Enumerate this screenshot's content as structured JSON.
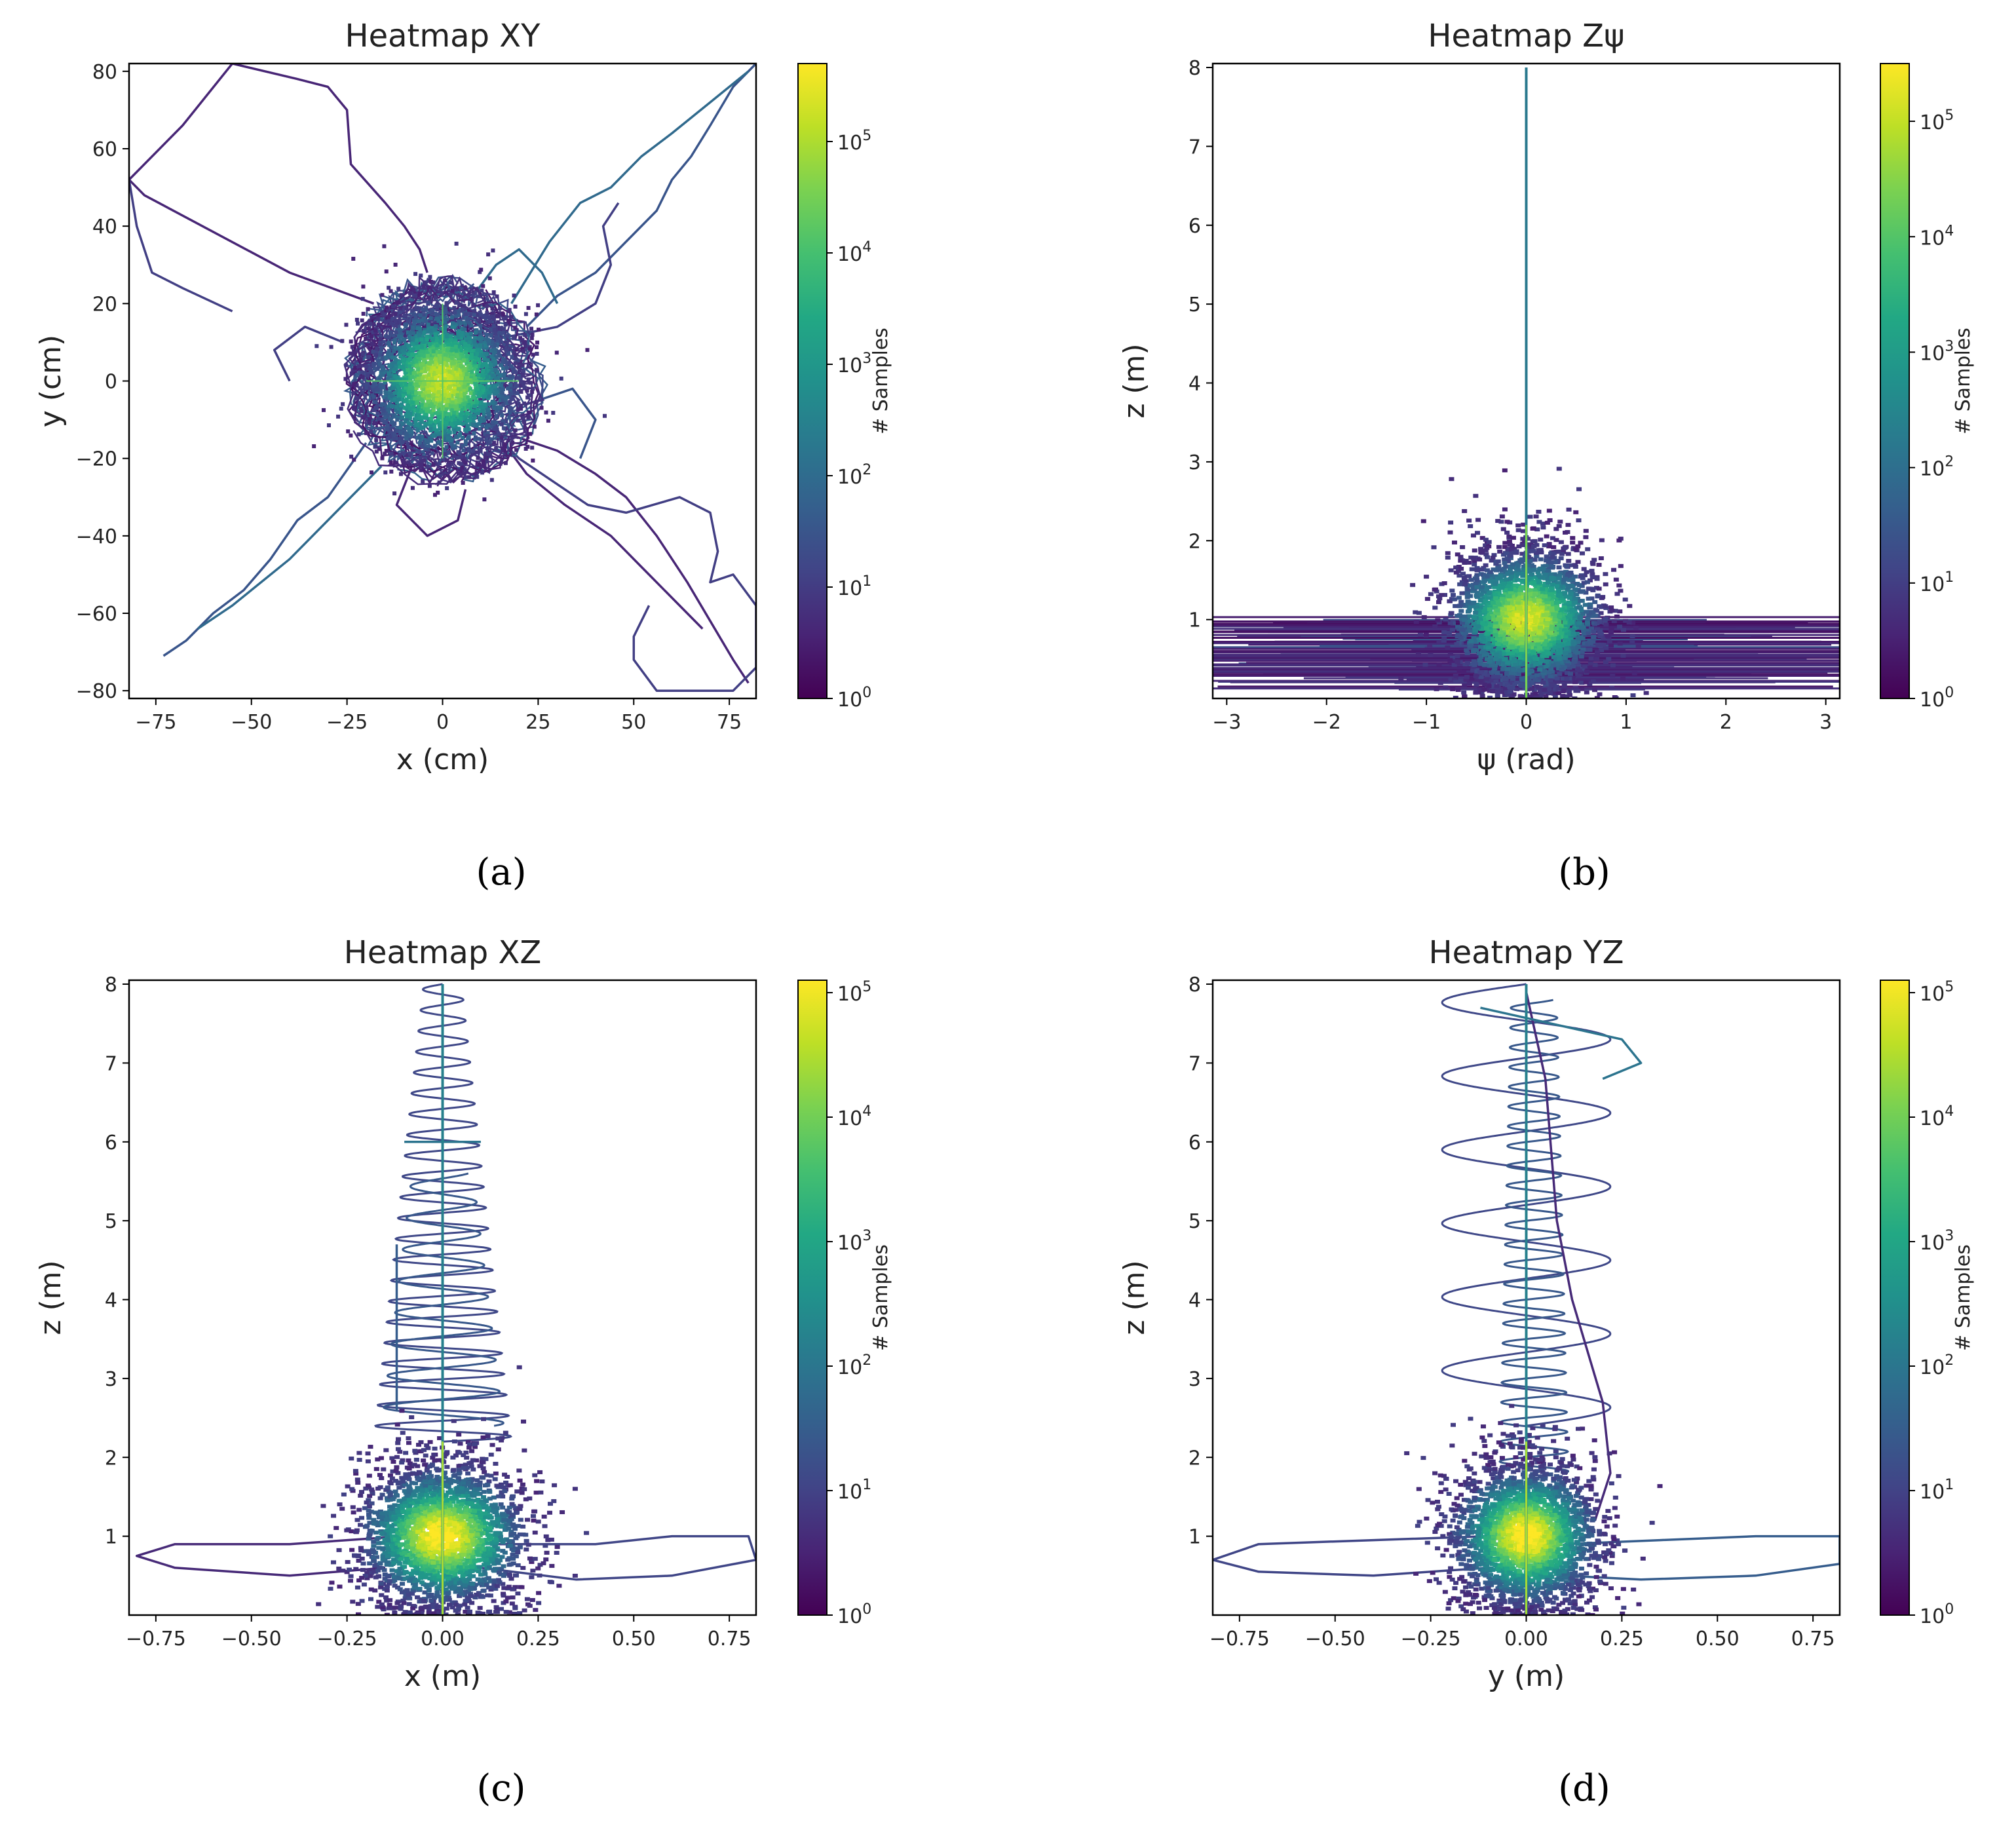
{
  "chart_data": [
    {
      "type": "heatmap",
      "panel": "(a)",
      "title": "Heatmap XY",
      "xlabel": "x (cm)",
      "ylabel": "y (cm)",
      "xlim": [
        -82,
        82
      ],
      "ylim": [
        -82,
        82
      ],
      "xticks": [
        -75,
        -50,
        -25,
        0,
        25,
        50,
        75
      ],
      "xtick_labels": [
        "−75",
        "−50",
        "−25",
        "0",
        "25",
        "50",
        "75"
      ],
      "yticks": [
        -80,
        -60,
        -40,
        -20,
        0,
        20,
        40,
        60,
        80
      ],
      "ytick_labels": [
        "−80",
        "−60",
        "−40",
        "−20",
        "0",
        "20",
        "40",
        "60",
        "80"
      ],
      "colorbar": {
        "label": "# Samples",
        "scale": "log",
        "ticks": [
          "10",
          "10",
          "10",
          "10",
          "10",
          "10"
        ],
        "exponents": [
          "0",
          "1",
          "2",
          "3",
          "4",
          "5"
        ],
        "max_exp": 5.7
      },
      "core": {
        "center": [
          0,
          0
        ],
        "radius": 22,
        "peak_exp": 5
      },
      "trajectories": [
        [
          [
            -18,
            20
          ],
          [
            -40,
            28
          ],
          [
            -78,
            48
          ],
          [
            -82,
            52
          ],
          [
            -68,
            66
          ],
          [
            -55,
            82
          ],
          [
            -38,
            78
          ],
          [
            -30,
            76
          ],
          [
            -25,
            70
          ],
          [
            -24,
            56
          ],
          [
            -15,
            46
          ],
          [
            -10,
            40
          ],
          [
            -6,
            34
          ],
          [
            -4,
            28
          ]
        ],
        [
          [
            -55,
            18
          ],
          [
            -68,
            24
          ],
          [
            -76,
            28
          ],
          [
            -80,
            40
          ],
          [
            -82,
            52
          ]
        ],
        [
          [
            22,
            14
          ],
          [
            30,
            22
          ],
          [
            40,
            28
          ],
          [
            50,
            38
          ],
          [
            56,
            44
          ],
          [
            60,
            52
          ],
          [
            65,
            58
          ],
          [
            70,
            66
          ],
          [
            76,
            76
          ],
          [
            82,
            82
          ]
        ],
        [
          [
            18,
            20
          ],
          [
            28,
            36
          ],
          [
            36,
            46
          ],
          [
            44,
            50
          ],
          [
            52,
            58
          ],
          [
            60,
            64
          ],
          [
            70,
            72
          ],
          [
            80,
            80
          ]
        ],
        [
          [
            18,
            -14
          ],
          [
            30,
            -18
          ],
          [
            40,
            -24
          ],
          [
            48,
            -30
          ],
          [
            56,
            -40
          ],
          [
            64,
            -52
          ],
          [
            70,
            -62
          ],
          [
            76,
            -72
          ],
          [
            80,
            -78
          ]
        ],
        [
          [
            0,
            0
          ],
          [
            20,
            -20
          ],
          [
            38,
            -32
          ],
          [
            48,
            -34
          ],
          [
            62,
            -30
          ],
          [
            70,
            -34
          ],
          [
            72,
            -44
          ],
          [
            70,
            -52
          ],
          [
            76,
            -50
          ],
          [
            82,
            -58
          ],
          [
            82,
            -74
          ],
          [
            76,
            -80
          ],
          [
            68,
            -80
          ],
          [
            56,
            -80
          ],
          [
            50,
            -72
          ],
          [
            50,
            -66
          ],
          [
            54,
            -58
          ]
        ],
        [
          [
            -20,
            -16
          ],
          [
            -30,
            -30
          ],
          [
            -38,
            -36
          ],
          [
            -45,
            -46
          ],
          [
            -52,
            -54
          ],
          [
            -60,
            -60
          ],
          [
            -67,
            -67
          ],
          [
            -73,
            -71
          ]
        ],
        [
          [
            -16,
            -22
          ],
          [
            -28,
            -34
          ],
          [
            -40,
            -46
          ],
          [
            -55,
            -58
          ],
          [
            -64,
            -64
          ]
        ],
        [
          [
            10,
            -8
          ],
          [
            22,
            -24
          ],
          [
            32,
            -32
          ],
          [
            44,
            -40
          ],
          [
            52,
            -48
          ],
          [
            60,
            -56
          ],
          [
            68,
            -64
          ]
        ],
        [
          [
            -26,
            10
          ],
          [
            -36,
            14
          ],
          [
            -44,
            8
          ],
          [
            -40,
            0
          ]
        ],
        [
          [
            22,
            -6
          ],
          [
            34,
            -2
          ],
          [
            40,
            -10
          ],
          [
            36,
            -20
          ]
        ],
        [
          [
            8,
            22
          ],
          [
            14,
            30
          ],
          [
            20,
            34
          ],
          [
            26,
            28
          ],
          [
            30,
            20
          ]
        ],
        [
          [
            -8,
            -22
          ],
          [
            -12,
            -32
          ],
          [
            -4,
            -40
          ],
          [
            4,
            -36
          ],
          [
            6,
            -28
          ]
        ],
        [
          [
            10,
            10
          ],
          [
            30,
            14
          ],
          [
            40,
            20
          ],
          [
            44,
            30
          ],
          [
            42,
            40
          ],
          [
            46,
            46
          ]
        ]
      ]
    },
    {
      "type": "heatmap",
      "panel": "(b)",
      "title": "Heatmap Zψ",
      "xlabel": "ψ (rad)",
      "ylabel": "z (m)",
      "xlim": [
        -3.14,
        3.14
      ],
      "ylim": [
        0,
        8.05
      ],
      "xticks": [
        -3,
        -2,
        -1,
        0,
        1,
        2,
        3
      ],
      "xtick_labels": [
        "−3",
        "−2",
        "−1",
        "0",
        "1",
        "2",
        "3"
      ],
      "yticks": [
        1,
        2,
        3,
        4,
        5,
        6,
        7,
        8
      ],
      "ytick_labels": [
        "1",
        "2",
        "3",
        "4",
        "5",
        "6",
        "7",
        "8"
      ],
      "colorbar": {
        "label": "# Samples",
        "scale": "log",
        "ticks": [
          "10",
          "10",
          "10",
          "10",
          "10",
          "10"
        ],
        "exponents": [
          "0",
          "1",
          "2",
          "3",
          "4",
          "5"
        ],
        "max_exp": 5.5
      },
      "core": {
        "center": [
          0,
          1
        ],
        "x_spread": 0.9,
        "y_spread": 1.0,
        "peak_exp": 5
      },
      "band": {
        "y_range": [
          0.1,
          1.05
        ],
        "x_range": [
          -3.14,
          3.14
        ]
      },
      "stem": {
        "x": 0,
        "y_range": [
          0,
          8.0
        ]
      }
    },
    {
      "type": "heatmap",
      "panel": "(c)",
      "title": "Heatmap XZ",
      "xlabel": "x (m)",
      "ylabel": "z (m)",
      "xlim": [
        -0.82,
        0.82
      ],
      "ylim": [
        0,
        8.05
      ],
      "xticks": [
        -0.75,
        -0.5,
        -0.25,
        0,
        0.25,
        0.5,
        0.75
      ],
      "xtick_labels": [
        "−0.75",
        "−0.50",
        "−0.25",
        "0.00",
        "0.25",
        "0.50",
        "0.75"
      ],
      "yticks": [
        1,
        2,
        3,
        4,
        5,
        6,
        7,
        8
      ],
      "ytick_labels": [
        "1",
        "2",
        "3",
        "4",
        "5",
        "6",
        "7",
        "8"
      ],
      "colorbar": {
        "label": "# Samples",
        "scale": "log",
        "ticks": [
          "10",
          "10",
          "10",
          "10",
          "10",
          "10"
        ],
        "exponents": [
          "0",
          "1",
          "2",
          "3",
          "4",
          "5"
        ],
        "max_exp": 5.1
      },
      "core": {
        "center": [
          0,
          1
        ],
        "x_spread": 0.25,
        "y_spread": 1.0,
        "peak_exp": 5
      },
      "stem": {
        "x": 0,
        "y_range": [
          0,
          8.0
        ]
      },
      "spirals": [
        {
          "y_range": [
            2.2,
            8.0
          ],
          "x_center": 0.0,
          "amplitude": [
            0.18,
            0.05
          ],
          "periods": 22
        },
        {
          "y_range": [
            2.4,
            5.6
          ],
          "x_center": 0.0,
          "amplitude": [
            0.16,
            0.08
          ],
          "periods": 8
        }
      ],
      "trajectories": [
        [
          [
            -0.1,
            1.0
          ],
          [
            -0.4,
            0.9
          ],
          [
            -0.7,
            0.9
          ],
          [
            -0.8,
            0.75
          ],
          [
            -0.7,
            0.6
          ],
          [
            -0.4,
            0.5
          ],
          [
            -0.15,
            0.6
          ]
        ],
        [
          [
            0.1,
            0.9
          ],
          [
            0.4,
            0.9
          ],
          [
            0.6,
            1.0
          ],
          [
            0.8,
            1.0
          ],
          [
            0.82,
            0.7
          ],
          [
            0.6,
            0.5
          ],
          [
            0.35,
            0.45
          ],
          [
            0.1,
            0.6
          ]
        ],
        [
          [
            -0.12,
            4.7
          ],
          [
            -0.12,
            2.6
          ]
        ],
        [
          [
            -0.1,
            6.0
          ],
          [
            0.1,
            6.0
          ]
        ]
      ]
    },
    {
      "type": "heatmap",
      "panel": "(d)",
      "title": "Heatmap YZ",
      "xlabel": "y (m)",
      "ylabel": "z (m)",
      "xlim": [
        -0.82,
        0.82
      ],
      "ylim": [
        0,
        8.05
      ],
      "xticks": [
        -0.75,
        -0.5,
        -0.25,
        0,
        0.25,
        0.5,
        0.75
      ],
      "xtick_labels": [
        "−0.75",
        "−0.50",
        "−0.25",
        "0.00",
        "0.25",
        "0.50",
        "0.75"
      ],
      "yticks": [
        1,
        2,
        3,
        4,
        5,
        6,
        7,
        8
      ],
      "ytick_labels": [
        "1",
        "2",
        "3",
        "4",
        "5",
        "6",
        "7",
        "8"
      ],
      "colorbar": {
        "label": "# Samples",
        "scale": "log",
        "ticks": [
          "10",
          "10",
          "10",
          "10",
          "10",
          "10"
        ],
        "exponents": [
          "0",
          "1",
          "2",
          "3",
          "4",
          "5"
        ],
        "max_exp": 5.1
      },
      "core": {
        "center": [
          0,
          1
        ],
        "x_spread": 0.22,
        "y_spread": 1.0,
        "peak_exp": 5
      },
      "stem": {
        "x": 0,
        "y_range": [
          0,
          8.0
        ]
      },
      "spirals": [
        {
          "y_range": [
            2.4,
            8.0
          ],
          "x_center": 0.0,
          "amplitude": [
            0.22,
            0.22
          ],
          "periods": 6
        },
        {
          "y_range": [
            1.8,
            7.8
          ],
          "x_center": 0.02,
          "amplitude": [
            0.09,
            0.06
          ],
          "periods": 24
        }
      ],
      "trajectories": [
        [
          [
            0.0,
            7.9
          ],
          [
            0.05,
            6.8
          ],
          [
            0.08,
            5.0
          ],
          [
            0.12,
            4.0
          ],
          [
            0.2,
            2.7
          ],
          [
            0.22,
            1.8
          ],
          [
            0.18,
            1.2
          ]
        ],
        [
          [
            -0.1,
            1.0
          ],
          [
            -0.4,
            0.95
          ],
          [
            -0.7,
            0.9
          ],
          [
            -0.82,
            0.7
          ],
          [
            -0.7,
            0.55
          ],
          [
            -0.4,
            0.5
          ],
          [
            -0.1,
            0.6
          ]
        ],
        [
          [
            0.1,
            0.9
          ],
          [
            0.35,
            0.95
          ],
          [
            0.6,
            1.0
          ],
          [
            0.82,
            1.0
          ],
          [
            0.82,
            0.65
          ],
          [
            0.6,
            0.5
          ],
          [
            0.3,
            0.45
          ],
          [
            0.1,
            0.5
          ]
        ],
        [
          [
            -0.12,
            7.7
          ],
          [
            0.25,
            7.3
          ],
          [
            0.3,
            7.0
          ],
          [
            0.2,
            6.8
          ]
        ]
      ]
    }
  ],
  "captions": [
    "(a)",
    "(b)",
    "(c)",
    "(d)"
  ]
}
